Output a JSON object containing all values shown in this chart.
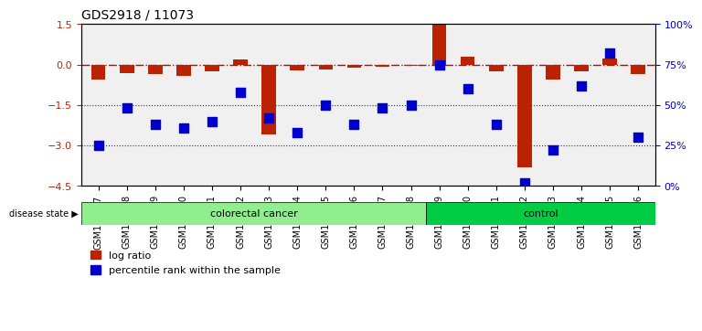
{
  "title": "GDS2918 / 11073",
  "samples": [
    "GSM112207",
    "GSM112208",
    "GSM112299",
    "GSM112300",
    "GSM112301",
    "GSM112302",
    "GSM112303",
    "GSM112304",
    "GSM112305",
    "GSM112306",
    "GSM112307",
    "GSM112308",
    "GSM112309",
    "GSM112310",
    "GSM112311",
    "GSM112312",
    "GSM112313",
    "GSM112314",
    "GSM112315",
    "GSM112316"
  ],
  "log_ratio": [
    -0.55,
    -0.32,
    -0.35,
    -0.42,
    -0.25,
    0.18,
    -2.6,
    -0.22,
    -0.18,
    -0.12,
    -0.08,
    -0.05,
    1.5,
    0.3,
    -0.25,
    -3.8,
    -0.55,
    -0.25,
    0.22,
    -0.35
  ],
  "percentile": [
    25,
    48,
    38,
    36,
    40,
    58,
    42,
    33,
    50,
    38,
    48,
    50,
    75,
    60,
    38,
    2,
    22,
    62,
    82,
    30
  ],
  "disease_groups": [
    {
      "label": "colorectal cancer",
      "start": 0,
      "end": 11,
      "color": "#90EE90"
    },
    {
      "label": "control",
      "start": 12,
      "end": 19,
      "color": "#00CC44"
    }
  ],
  "ylim_left": [
    -4.5,
    1.5
  ],
  "ylim_right": [
    0,
    100
  ],
  "bar_color": "#BB2200",
  "dot_color": "#0000CC",
  "hline_color": "#CC0000",
  "hline_style": "-.",
  "dotted_line_color": "#333333",
  "bg_color": "#FFFFFF",
  "bar_width": 0.5,
  "dot_size": 60,
  "legend_items": [
    "log ratio",
    "percentile rank within the sample"
  ]
}
